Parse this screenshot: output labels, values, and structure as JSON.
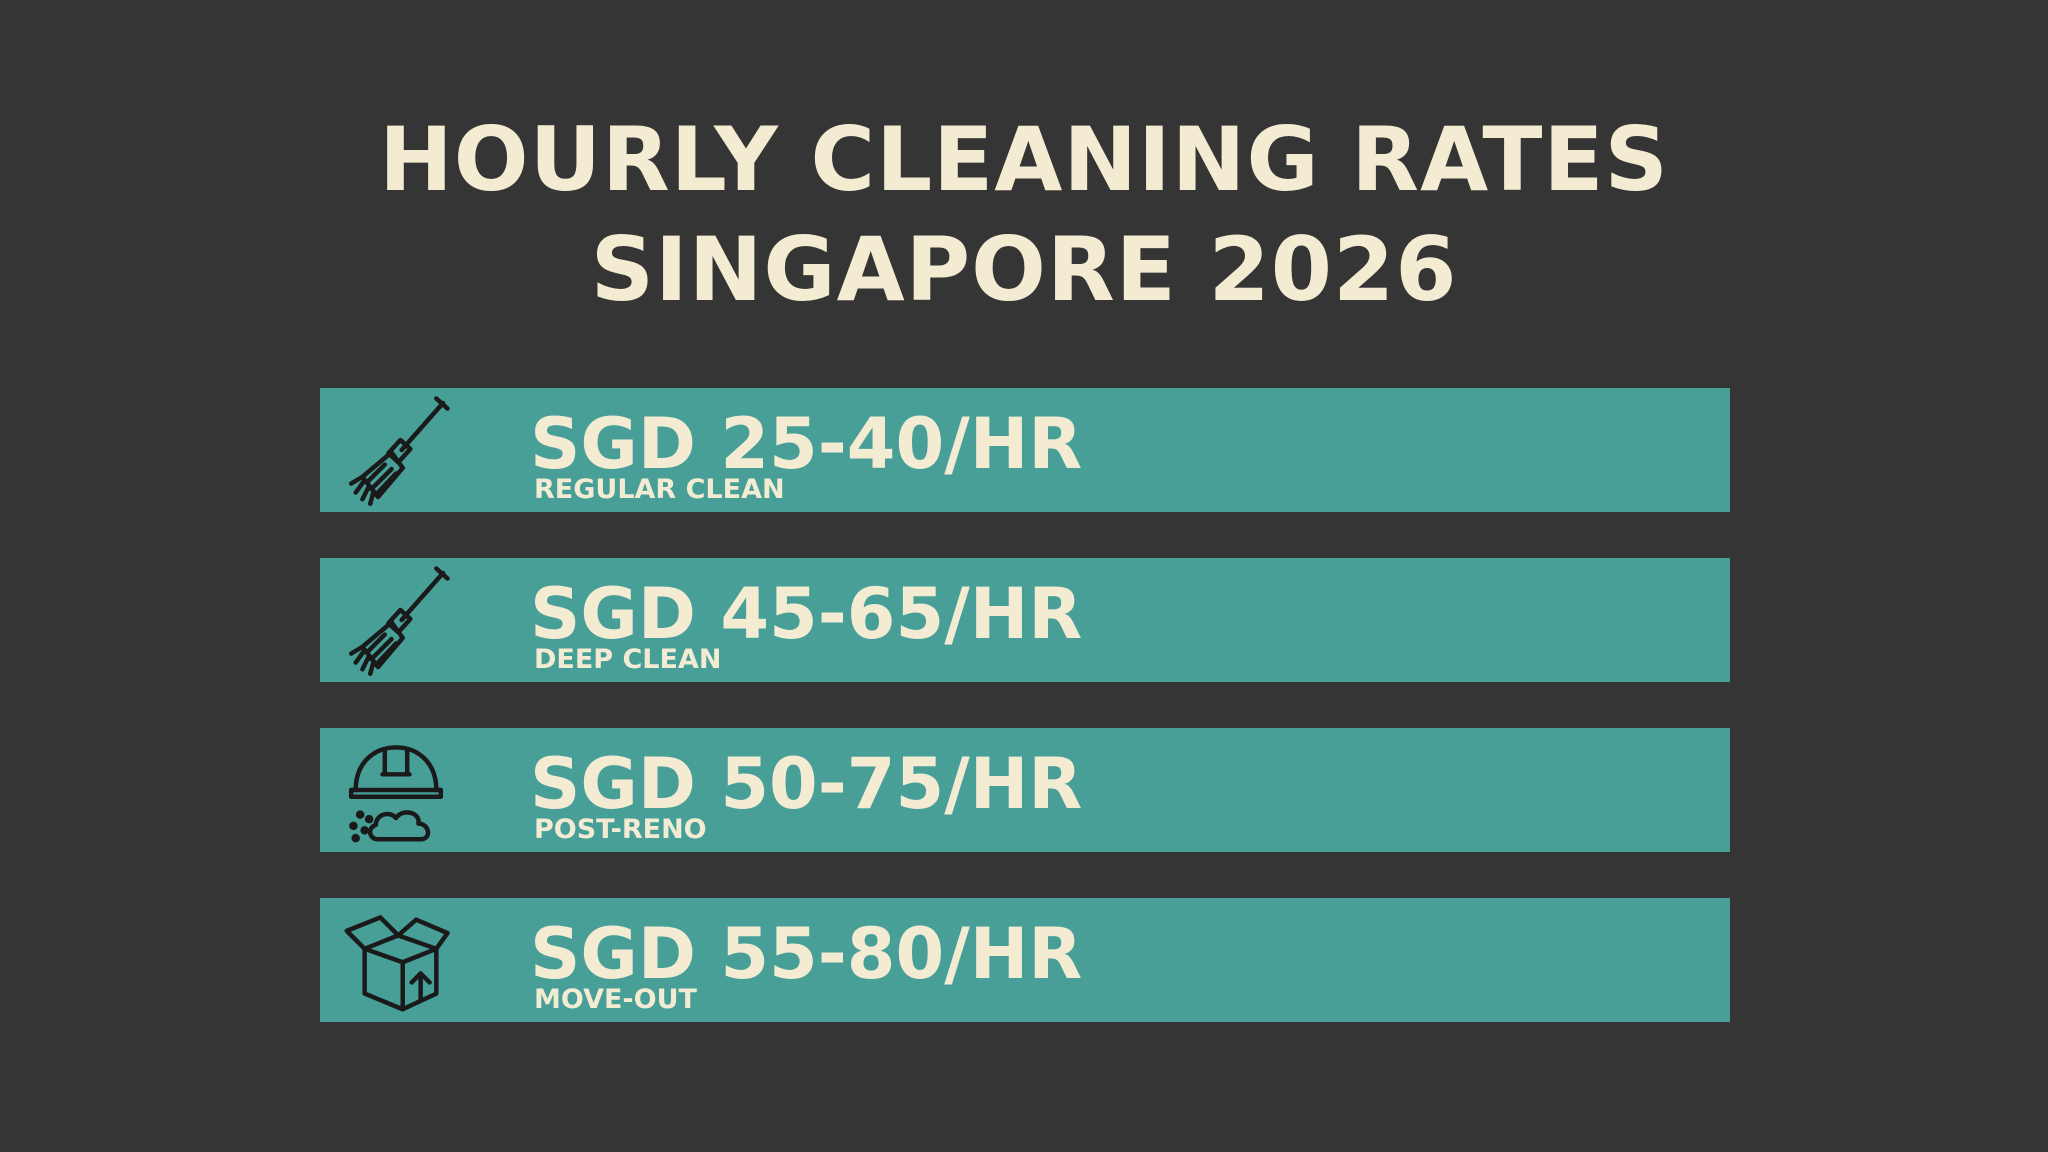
{
  "header": {
    "title_line1": "HOURLY CLEANING RATES",
    "title_line2": "SINGAPORE 2026"
  },
  "colors": {
    "background": "#353535",
    "bar": "#479f98",
    "text": "#f3ecd2",
    "icon": "#1a1a1a"
  },
  "rates": [
    {
      "price": "SGD 25-40/HR",
      "label": "REGULAR CLEAN",
      "icon": "broom-icon"
    },
    {
      "price": "SGD 45-65/HR",
      "label": "DEEP CLEAN",
      "icon": "broom-icon"
    },
    {
      "price": "SGD 50-75/HR",
      "label": "POST-RENO",
      "icon": "hard-hat-dust-icon"
    },
    {
      "price": "SGD 55-80/HR",
      "label": "MOVE-OUT",
      "icon": "moving-box-icon"
    }
  ]
}
